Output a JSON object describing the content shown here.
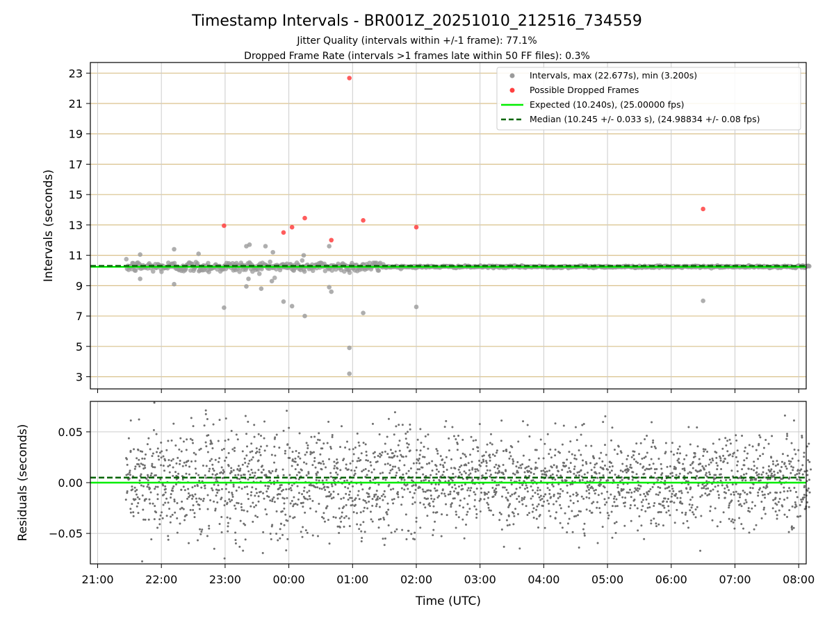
{
  "chart_data": [
    {
      "type": "scatter",
      "title": "Timestamp Intervals - BR001Z_20251010_212516_734559",
      "subtitle_lines": [
        "Jitter Quality (intervals within +/-1 frame): 77.1%",
        "Dropped Frame Rate (intervals >1 frames late within 50 FF files): 0.3%"
      ],
      "xlabel": "",
      "ylabel": "Intervals (seconds)",
      "ylim": [
        2.2,
        23.7
      ],
      "yticks": [
        "3",
        "5",
        "7",
        "9",
        "11",
        "13",
        "15",
        "17",
        "19",
        "21",
        "23"
      ],
      "grid": true,
      "legend_position": "top-right",
      "series": [
        {
          "name": "Intervals, max (22.677s), min (3.200s)",
          "color": "#9a9a9a",
          "cluster": {
            "start": "21:27",
            "end": "08:10",
            "median": 10.245,
            "spread_before_01:30": 0.5,
            "spread_after_01:30": 0.04
          },
          "outliers": [
            {
              "x": "22:59",
              "y": 7.55
            },
            {
              "x": "23:55",
              "y": 7.95
            },
            {
              "x": "00:03",
              "y": 7.65
            },
            {
              "x": "00:15",
              "y": 7.0
            },
            {
              "x": "00:38",
              "y": 8.9
            },
            {
              "x": "00:40",
              "y": 8.6
            },
            {
              "x": "00:57",
              "y": 4.9
            },
            {
              "x": "00:57",
              "y": 3.2
            },
            {
              "x": "01:10",
              "y": 7.2
            },
            {
              "x": "02:00",
              "y": 7.6
            },
            {
              "x": "06:30",
              "y": 8.0
            },
            {
              "x": "21:40",
              "y": 11.05
            },
            {
              "x": "22:12",
              "y": 11.4
            },
            {
              "x": "22:35",
              "y": 11.1
            },
            {
              "x": "23:20",
              "y": 11.6
            },
            {
              "x": "23:23",
              "y": 11.7
            },
            {
              "x": "23:38",
              "y": 11.6
            },
            {
              "x": "23:45",
              "y": 11.2
            },
            {
              "x": "00:14",
              "y": 11.0
            },
            {
              "x": "00:38",
              "y": 11.6
            },
            {
              "x": "21:40",
              "y": 9.45
            },
            {
              "x": "22:12",
              "y": 9.1
            },
            {
              "x": "23:20",
              "y": 8.95
            },
            {
              "x": "23:22",
              "y": 9.45
            },
            {
              "x": "23:34",
              "y": 8.8
            },
            {
              "x": "23:44",
              "y": 9.3
            }
          ]
        },
        {
          "name": "Possible Dropped Frames",
          "color": "#ff4040",
          "points": [
            {
              "x": "22:59",
              "y": 12.95
            },
            {
              "x": "23:55",
              "y": 12.5
            },
            {
              "x": "00:03",
              "y": 12.85
            },
            {
              "x": "00:15",
              "y": 13.45
            },
            {
              "x": "00:40",
              "y": 12.0
            },
            {
              "x": "00:57",
              "y": 22.677
            },
            {
              "x": "01:10",
              "y": 13.3
            },
            {
              "x": "02:00",
              "y": 12.85
            },
            {
              "x": "06:30",
              "y": 14.05
            }
          ]
        },
        {
          "name": "Expected (10.240s), (25.00000 fps)",
          "color": "#00ee00",
          "value": 10.24
        },
        {
          "name": "Median (10.245 +/- 0.033 s), (24.98834 +/- 0.08 fps)",
          "color": "#006400",
          "value": 10.245
        }
      ]
    },
    {
      "type": "scatter",
      "xlabel": "Time (UTC)",
      "ylabel": "Residuals (seconds)",
      "ylim": [
        -0.08,
        0.08
      ],
      "yticks": [
        "−0.05",
        "0.00",
        "0.05"
      ],
      "xticks": [
        "21:00",
        "22:00",
        "23:00",
        "00:00",
        "01:00",
        "02:00",
        "03:00",
        "04:00",
        "05:00",
        "06:00",
        "07:00",
        "08:00"
      ],
      "xlim": [
        "20:54",
        "08:11"
      ],
      "grid": true,
      "series": [
        {
          "name": "",
          "color": "#6e6e6e",
          "range": {
            "start": "21:27",
            "end": "08:11"
          },
          "spread_sd": 0.028,
          "spread_sd_after_02:00": 0.022
        },
        {
          "name": "",
          "color": "#00ee00",
          "value": 0.0
        },
        {
          "name": "",
          "color": "#006400",
          "value": 0.005
        }
      ]
    }
  ],
  "colors": {
    "grid_y_top": "#d9c08a",
    "grid_x": "#cccccc",
    "scatter_gray": "#9a9a9a",
    "dropped_red": "#ff4040",
    "expected_green": "#00ee00",
    "median_darkgreen": "#006400"
  }
}
